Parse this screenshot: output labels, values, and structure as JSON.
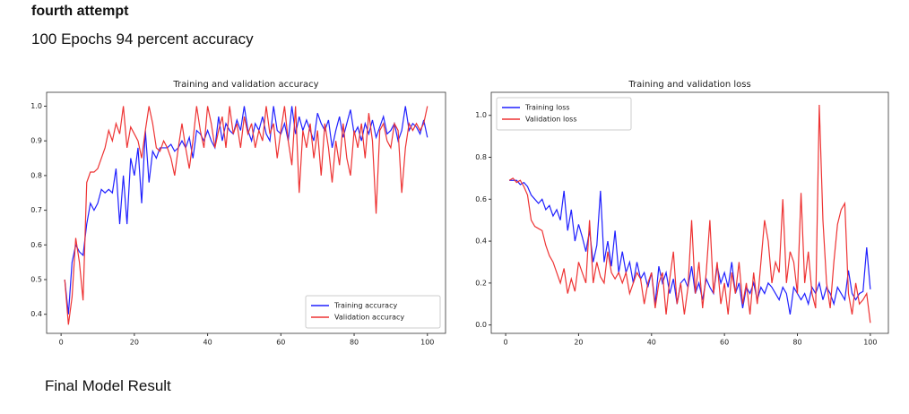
{
  "header": {
    "title": "fourth attempt",
    "subtitle": "100 Epochs 94 percent accuracy"
  },
  "footer": {
    "caption": "Final Model Result"
  },
  "chart_data": [
    {
      "type": "line",
      "title": "Training and validation accuracy",
      "x": [
        1,
        2,
        3,
        4,
        5,
        6,
        7,
        8,
        9,
        10,
        11,
        12,
        13,
        14,
        15,
        16,
        17,
        18,
        19,
        20,
        21,
        22,
        23,
        24,
        25,
        26,
        27,
        28,
        29,
        30,
        31,
        32,
        33,
        34,
        35,
        36,
        37,
        38,
        39,
        40,
        41,
        42,
        43,
        44,
        45,
        46,
        47,
        48,
        49,
        50,
        51,
        52,
        53,
        54,
        55,
        56,
        57,
        58,
        59,
        60,
        61,
        62,
        63,
        64,
        65,
        66,
        67,
        68,
        69,
        70,
        71,
        72,
        73,
        74,
        75,
        76,
        77,
        78,
        79,
        80,
        81,
        82,
        83,
        84,
        85,
        86,
        87,
        88,
        89,
        90,
        91,
        92,
        93,
        94,
        95,
        96,
        97,
        98,
        99,
        100
      ],
      "series": [
        {
          "name": "Training accuracy",
          "color": "#2020ff",
          "values": [
            0.5,
            0.4,
            0.55,
            0.6,
            0.58,
            0.57,
            0.66,
            0.72,
            0.7,
            0.72,
            0.76,
            0.75,
            0.76,
            0.75,
            0.82,
            0.66,
            0.8,
            0.66,
            0.85,
            0.8,
            0.88,
            0.72,
            0.93,
            0.78,
            0.87,
            0.85,
            0.88,
            0.88,
            0.88,
            0.89,
            0.87,
            0.88,
            0.9,
            0.88,
            0.91,
            0.85,
            0.93,
            0.92,
            0.9,
            0.93,
            0.9,
            0.88,
            0.97,
            0.9,
            0.95,
            0.93,
            0.92,
            0.96,
            0.93,
            1.0,
            0.93,
            0.9,
            0.95,
            0.93,
            0.97,
            0.92,
            0.9,
            1.0,
            0.93,
            0.92,
            0.95,
            0.9,
            1.0,
            0.92,
            0.97,
            0.93,
            0.96,
            0.93,
            0.9,
            0.98,
            0.95,
            0.93,
            0.96,
            0.88,
            0.93,
            0.97,
            0.91,
            0.95,
            0.99,
            0.92,
            0.94,
            0.9,
            0.95,
            0.92,
            0.96,
            0.91,
            0.94,
            0.97,
            0.92,
            0.93,
            0.95,
            0.9,
            0.93,
            1.0,
            0.93,
            0.95,
            0.94,
            0.92,
            0.96,
            0.91
          ]
        },
        {
          "name": "Validation accuracy",
          "color": "#ee3333",
          "values": [
            0.5,
            0.37,
            0.45,
            0.62,
            0.55,
            0.44,
            0.78,
            0.81,
            0.81,
            0.82,
            0.85,
            0.88,
            0.93,
            0.9,
            0.95,
            0.92,
            1.0,
            0.88,
            0.94,
            0.92,
            0.9,
            0.85,
            0.93,
            1.0,
            0.95,
            0.88,
            0.87,
            0.9,
            0.88,
            0.85,
            0.8,
            0.88,
            0.95,
            0.88,
            0.82,
            0.9,
            1.0,
            0.93,
            0.88,
            1.0,
            0.95,
            0.88,
            0.93,
            0.97,
            0.88,
            1.0,
            0.92,
            0.95,
            0.88,
            0.97,
            0.92,
            0.95,
            0.88,
            0.93,
            0.9,
            1.0,
            0.92,
            0.95,
            0.85,
            0.93,
            1.0,
            0.9,
            0.83,
            1.0,
            0.75,
            0.93,
            0.88,
            0.95,
            0.85,
            0.93,
            0.8,
            0.95,
            0.88,
            0.78,
            0.9,
            0.83,
            0.95,
            0.85,
            0.8,
            0.93,
            0.88,
            0.95,
            0.85,
            0.98,
            0.9,
            0.69,
            0.93,
            0.95,
            0.9,
            0.88,
            0.95,
            0.93,
            0.75,
            0.88,
            0.95,
            0.93,
            0.95,
            0.93,
            0.95,
            1.0
          ]
        }
      ],
      "xlim": [
        -3.95,
        104.95
      ],
      "xticks": [
        0,
        20,
        40,
        60,
        80,
        100
      ],
      "ylim": [
        0.345,
        1.04
      ],
      "yticks": [
        0.4,
        0.5,
        0.6,
        0.7,
        0.8,
        0.9,
        {
          "value": 1,
          "label": "1.0"
        }
      ],
      "legend": "lower right"
    },
    {
      "type": "line",
      "title": "Training and validation loss",
      "x": [
        1,
        2,
        3,
        4,
        5,
        6,
        7,
        8,
        9,
        10,
        11,
        12,
        13,
        14,
        15,
        16,
        17,
        18,
        19,
        20,
        21,
        22,
        23,
        24,
        25,
        26,
        27,
        28,
        29,
        30,
        31,
        32,
        33,
        34,
        35,
        36,
        37,
        38,
        39,
        40,
        41,
        42,
        43,
        44,
        45,
        46,
        47,
        48,
        49,
        50,
        51,
        52,
        53,
        54,
        55,
        56,
        57,
        58,
        59,
        60,
        61,
        62,
        63,
        64,
        65,
        66,
        67,
        68,
        69,
        70,
        71,
        72,
        73,
        74,
        75,
        76,
        77,
        78,
        79,
        80,
        81,
        82,
        83,
        84,
        85,
        86,
        87,
        88,
        89,
        90,
        91,
        92,
        93,
        94,
        95,
        96,
        97,
        98,
        99,
        100
      ],
      "series": [
        {
          "name": "Training loss",
          "color": "#2020ff",
          "values": [
            0.69,
            0.69,
            0.69,
            0.67,
            0.68,
            0.66,
            0.62,
            0.6,
            0.58,
            0.6,
            0.55,
            0.57,
            0.52,
            0.55,
            0.5,
            0.64,
            0.45,
            0.55,
            0.4,
            0.48,
            0.42,
            0.35,
            0.45,
            0.3,
            0.38,
            0.64,
            0.3,
            0.4,
            0.28,
            0.45,
            0.25,
            0.35,
            0.25,
            0.3,
            0.2,
            0.3,
            0.22,
            0.25,
            0.18,
            0.25,
            0.1,
            0.28,
            0.2,
            0.25,
            0.15,
            0.22,
            0.1,
            0.2,
            0.22,
            0.18,
            0.28,
            0.15,
            0.2,
            0.12,
            0.22,
            0.18,
            0.15,
            0.28,
            0.2,
            0.25,
            0.18,
            0.3,
            0.15,
            0.2,
            0.08,
            0.18,
            0.15,
            0.2,
            0.12,
            0.18,
            0.15,
            0.2,
            0.18,
            0.15,
            0.12,
            0.18,
            0.15,
            0.05,
            0.18,
            0.15,
            0.12,
            0.15,
            0.1,
            0.18,
            0.15,
            0.2,
            0.12,
            0.18,
            0.15,
            0.1,
            0.18,
            0.15,
            0.12,
            0.26,
            0.15,
            0.12,
            0.15,
            0.16,
            0.37,
            0.17
          ]
        },
        {
          "name": "Validation loss",
          "color": "#ee3333",
          "values": [
            0.69,
            0.7,
            0.68,
            0.69,
            0.66,
            0.62,
            0.5,
            0.47,
            0.46,
            0.45,
            0.38,
            0.33,
            0.3,
            0.25,
            0.2,
            0.27,
            0.15,
            0.22,
            0.16,
            0.3,
            0.25,
            0.2,
            0.5,
            0.2,
            0.3,
            0.23,
            0.2,
            0.35,
            0.25,
            0.22,
            0.25,
            0.2,
            0.25,
            0.15,
            0.2,
            0.25,
            0.22,
            0.1,
            0.2,
            0.25,
            0.08,
            0.2,
            0.25,
            0.05,
            0.22,
            0.35,
            0.1,
            0.2,
            0.05,
            0.18,
            0.5,
            0.15,
            0.3,
            0.08,
            0.25,
            0.5,
            0.15,
            0.3,
            0.1,
            0.2,
            0.05,
            0.25,
            0.15,
            0.3,
            0.1,
            0.2,
            0.05,
            0.25,
            0.1,
            0.3,
            0.5,
            0.4,
            0.2,
            0.3,
            0.25,
            0.6,
            0.2,
            0.35,
            0.3,
            0.15,
            0.63,
            0.2,
            0.35,
            0.15,
            0.08,
            1.05,
            0.5,
            0.2,
            0.08,
            0.3,
            0.48,
            0.55,
            0.58,
            0.15,
            0.05,
            0.2,
            0.1,
            0.12,
            0.15,
            0.01
          ]
        }
      ],
      "xlim": [
        -3.95,
        104.95
      ],
      "xticks": [
        0,
        20,
        40,
        60,
        80,
        100
      ],
      "ylim": [
        -0.04,
        1.11
      ],
      "yticks": [
        {
          "value": 0,
          "label": "0.0"
        },
        0.2,
        0.4,
        0.6,
        0.8,
        {
          "value": 1,
          "label": "1.0"
        }
      ],
      "legend": "upper left"
    }
  ]
}
